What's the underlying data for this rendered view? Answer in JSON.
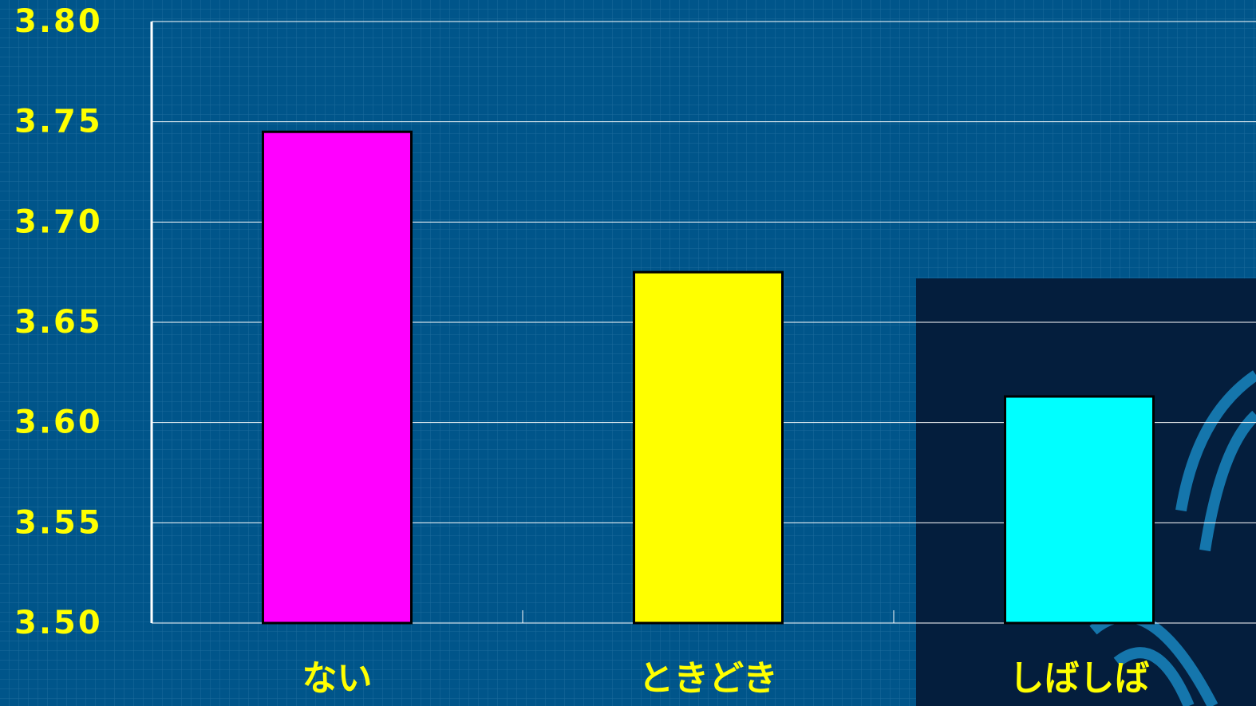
{
  "chart_data": {
    "type": "bar",
    "categories": [
      "ない",
      "ときどき",
      "しばしば"
    ],
    "values": [
      3.745,
      3.675,
      3.613
    ],
    "colors": [
      "#ff00ff",
      "#ffff00",
      "#00ffff"
    ],
    "ylim": [
      3.5,
      3.8
    ],
    "yticks": [
      {
        "value": 3.5,
        "label": "3.50"
      },
      {
        "value": 3.55,
        "label": "3.55"
      },
      {
        "value": 3.6,
        "label": "3.60"
      },
      {
        "value": 3.65,
        "label": "3.65"
      },
      {
        "value": 3.7,
        "label": "3.70"
      },
      {
        "value": 3.75,
        "label": "3.75"
      },
      {
        "value": 3.8,
        "label": "3.80"
      }
    ],
    "grid": true
  }
}
